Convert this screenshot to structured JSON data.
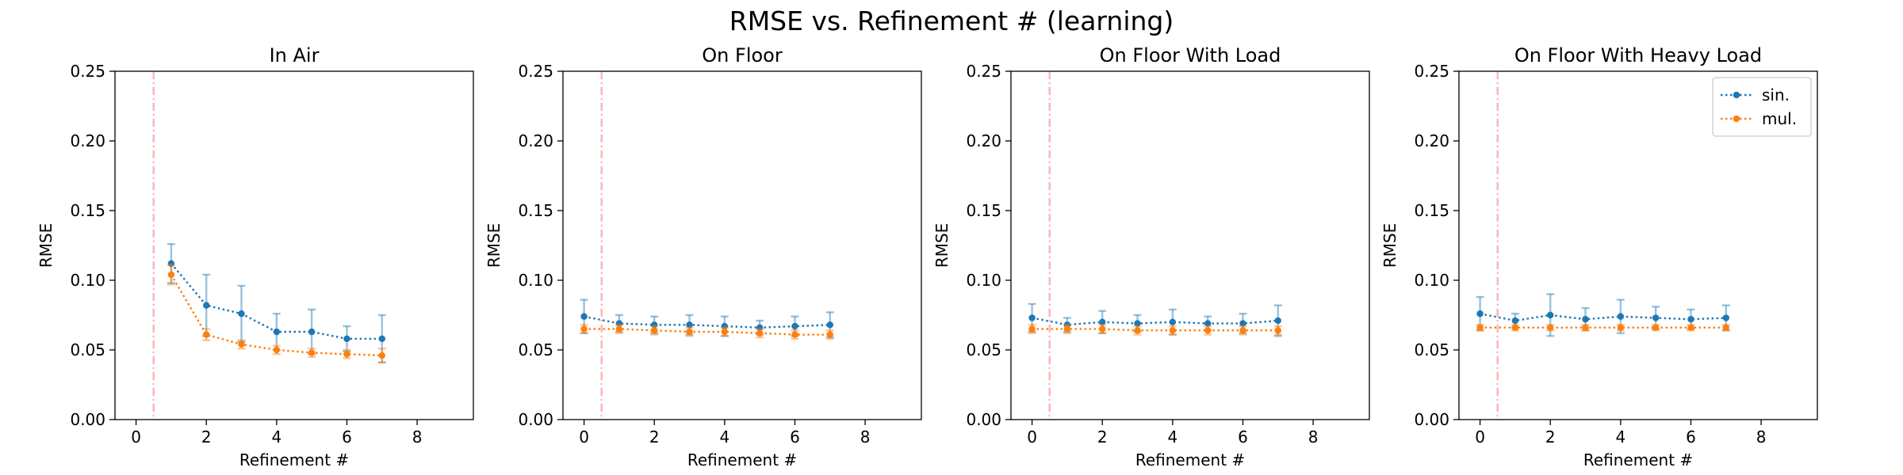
{
  "figure": {
    "title": "RMSE vs. Refinement # (learning)"
  },
  "colors": {
    "sin": "#1f77b4",
    "mul": "#ff7f0e",
    "vline": "#ffb3b3"
  },
  "legend": {
    "placement": "upper-right",
    "panel": 3,
    "entries": [
      "sin.",
      "mul."
    ]
  },
  "chart_data": [
    {
      "type": "line",
      "title": "In Air",
      "xlabel": "Refinement #",
      "ylabel": "RMSE",
      "xlim": [
        -0.6,
        9.6
      ],
      "ylim": [
        0,
        0.25
      ],
      "xticks": [
        "0",
        "2",
        "4",
        "6",
        "8"
      ],
      "yticks": [
        "0.00",
        "0.05",
        "0.10",
        "0.15",
        "0.20",
        "0.25"
      ],
      "vline_x": 0.5,
      "series": [
        {
          "name": "sin.",
          "x": [
            1,
            2,
            3,
            4,
            5,
            6,
            7
          ],
          "values": [
            0.112,
            0.082,
            0.076,
            0.063,
            0.063,
            0.058,
            0.058
          ],
          "err": [
            0.014,
            0.022,
            0.02,
            0.013,
            0.016,
            0.009,
            0.017
          ]
        },
        {
          "name": "mul.",
          "x": [
            1,
            2,
            3,
            4,
            5,
            6,
            7
          ],
          "values": [
            0.104,
            0.061,
            0.054,
            0.05,
            0.048,
            0.047,
            0.046
          ],
          "err": [
            0.007,
            0.004,
            0.003,
            0.003,
            0.003,
            0.003,
            0.005
          ]
        }
      ]
    },
    {
      "type": "line",
      "title": "On Floor",
      "xlabel": "Refinement #",
      "ylabel": "RMSE",
      "xlim": [
        -0.6,
        9.6
      ],
      "ylim": [
        0,
        0.25
      ],
      "xticks": [
        "0",
        "2",
        "4",
        "6",
        "8"
      ],
      "yticks": [
        "0.00",
        "0.05",
        "0.10",
        "0.15",
        "0.20",
        "0.25"
      ],
      "vline_x": 0.5,
      "series": [
        {
          "name": "sin.",
          "x": [
            0,
            1,
            2,
            3,
            4,
            5,
            6,
            7
          ],
          "values": [
            0.074,
            0.069,
            0.068,
            0.068,
            0.067,
            0.066,
            0.067,
            0.068
          ],
          "err": [
            0.012,
            0.006,
            0.006,
            0.007,
            0.007,
            0.005,
            0.007,
            0.009
          ]
        },
        {
          "name": "mul.",
          "x": [
            0,
            1,
            2,
            3,
            4,
            5,
            6,
            7
          ],
          "values": [
            0.065,
            0.065,
            0.064,
            0.063,
            0.063,
            0.062,
            0.061,
            0.061
          ],
          "err": [
            0.003,
            0.003,
            0.003,
            0.003,
            0.003,
            0.003,
            0.003,
            0.003
          ]
        }
      ]
    },
    {
      "type": "line",
      "title": "On Floor With Load",
      "xlabel": "Refinement #",
      "ylabel": "RMSE",
      "xlim": [
        -0.6,
        9.6
      ],
      "ylim": [
        0,
        0.25
      ],
      "xticks": [
        "0",
        "2",
        "4",
        "6",
        "8"
      ],
      "yticks": [
        "0.00",
        "0.05",
        "0.10",
        "0.15",
        "0.20",
        "0.25"
      ],
      "vline_x": 0.5,
      "series": [
        {
          "name": "sin.",
          "x": [
            0,
            1,
            2,
            3,
            4,
            5,
            6,
            7
          ],
          "values": [
            0.073,
            0.068,
            0.07,
            0.069,
            0.07,
            0.069,
            0.069,
            0.071
          ],
          "err": [
            0.01,
            0.005,
            0.008,
            0.006,
            0.009,
            0.005,
            0.007,
            0.011
          ]
        },
        {
          "name": "mul.",
          "x": [
            0,
            1,
            2,
            3,
            4,
            5,
            6,
            7
          ],
          "values": [
            0.065,
            0.065,
            0.065,
            0.064,
            0.064,
            0.064,
            0.064,
            0.064
          ],
          "err": [
            0.003,
            0.003,
            0.003,
            0.003,
            0.003,
            0.003,
            0.003,
            0.003
          ]
        }
      ]
    },
    {
      "type": "line",
      "title": "On Floor With Heavy Load",
      "xlabel": "Refinement #",
      "ylabel": "RMSE",
      "xlim": [
        -0.6,
        9.6
      ],
      "ylim": [
        0,
        0.25
      ],
      "xticks": [
        "0",
        "2",
        "4",
        "6",
        "8"
      ],
      "yticks": [
        "0.00",
        "0.05",
        "0.10",
        "0.15",
        "0.20",
        "0.25"
      ],
      "vline_x": 0.5,
      "series": [
        {
          "name": "sin.",
          "x": [
            0,
            1,
            2,
            3,
            4,
            5,
            6,
            7
          ],
          "values": [
            0.076,
            0.071,
            0.075,
            0.072,
            0.074,
            0.073,
            0.072,
            0.073
          ],
          "err": [
            0.012,
            0.005,
            0.015,
            0.008,
            0.012,
            0.008,
            0.007,
            0.009
          ]
        },
        {
          "name": "mul.",
          "x": [
            0,
            1,
            2,
            3,
            4,
            5,
            6,
            7
          ],
          "values": [
            0.066,
            0.066,
            0.066,
            0.066,
            0.066,
            0.066,
            0.066,
            0.066
          ],
          "err": [
            0.002,
            0.002,
            0.002,
            0.002,
            0.002,
            0.002,
            0.002,
            0.002
          ]
        }
      ]
    }
  ]
}
